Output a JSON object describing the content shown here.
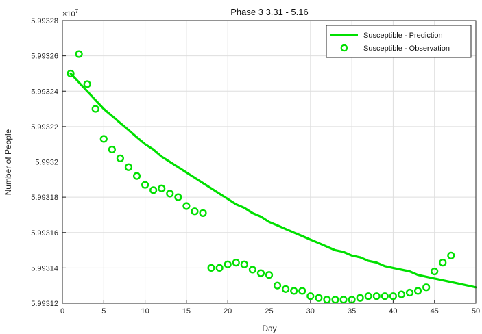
{
  "chart_data": {
    "type": "line",
    "title": "Phase 3 3.31 - 5.16",
    "xlabel": "Day",
    "ylabel": "Number of People",
    "exponent_label": "×10",
    "exponent_power": "7",
    "xlim": [
      0,
      50
    ],
    "ylim": [
      5.99312,
      5.99328
    ],
    "x_ticks": [
      0,
      5,
      10,
      15,
      20,
      25,
      30,
      35,
      40,
      45,
      50
    ],
    "x_tick_labels": [
      "0",
      "5",
      "10",
      "15",
      "20",
      "25",
      "30",
      "35",
      "40",
      "45",
      "50"
    ],
    "y_ticks": [
      5.99312,
      5.99314,
      5.99316,
      5.99318,
      5.9932,
      5.99322,
      5.99324,
      5.99326,
      5.99328
    ],
    "y_tick_labels": [
      "5.99312",
      "5.99314",
      "5.99316",
      "5.99318",
      "5.9932",
      "5.99322",
      "5.99324",
      "5.99326",
      "5.99328"
    ],
    "grid": true,
    "legend_position": "top-right",
    "series_color": "#00e000",
    "series": [
      {
        "name": "Susceptible - Prediction",
        "style": "line",
        "x": [
          1,
          2,
          3,
          4,
          5,
          6,
          7,
          8,
          9,
          10,
          11,
          12,
          13,
          14,
          15,
          16,
          17,
          18,
          19,
          20,
          21,
          22,
          23,
          24,
          25,
          26,
          27,
          28,
          29,
          30,
          31,
          32,
          33,
          34,
          35,
          36,
          37,
          38,
          39,
          40,
          41,
          42,
          43,
          44,
          45,
          46,
          47,
          48,
          49,
          50
        ],
        "y": [
          5.99325,
          5.993245,
          5.99324,
          5.993235,
          5.99323,
          5.993226,
          5.993222,
          5.993218,
          5.993214,
          5.99321,
          5.993207,
          5.993203,
          5.9932,
          5.993197,
          5.993194,
          5.993191,
          5.993188,
          5.993185,
          5.993182,
          5.993179,
          5.993176,
          5.993174,
          5.993171,
          5.993169,
          5.993166,
          5.993164,
          5.993162,
          5.99316,
          5.993158,
          5.993156,
          5.993154,
          5.993152,
          5.99315,
          5.993149,
          5.993147,
          5.993146,
          5.993144,
          5.993143,
          5.993141,
          5.99314,
          5.993139,
          5.993138,
          5.993136,
          5.993135,
          5.993134,
          5.993133,
          5.993132,
          5.993131,
          5.99313,
          5.993129
        ]
      },
      {
        "name": "Susceptible - Observation",
        "style": "marker",
        "x": [
          1,
          2,
          3,
          4,
          5,
          6,
          7,
          8,
          9,
          10,
          11,
          12,
          13,
          14,
          15,
          16,
          17,
          18,
          19,
          20,
          21,
          22,
          23,
          24,
          25,
          26,
          27,
          28,
          29,
          30,
          31,
          32,
          33,
          34,
          35,
          36,
          37,
          38,
          39,
          40,
          41,
          42,
          43,
          44,
          45,
          46,
          47
        ],
        "y": [
          5.99325,
          5.993261,
          5.993244,
          5.99323,
          5.993213,
          5.993207,
          5.993202,
          5.993197,
          5.993192,
          5.993187,
          5.993184,
          5.993185,
          5.993182,
          5.99318,
          5.993175,
          5.993172,
          5.993171,
          5.99314,
          5.99314,
          5.993142,
          5.993143,
          5.993142,
          5.993139,
          5.993137,
          5.993136,
          5.99313,
          5.993128,
          5.993127,
          5.993127,
          5.993124,
          5.993123,
          5.993122,
          5.993122,
          5.993122,
          5.993122,
          5.993123,
          5.993124,
          5.993124,
          5.993124,
          5.993124,
          5.993125,
          5.993126,
          5.993127,
          5.993129,
          5.993138,
          5.993143,
          5.993147
        ]
      }
    ]
  }
}
